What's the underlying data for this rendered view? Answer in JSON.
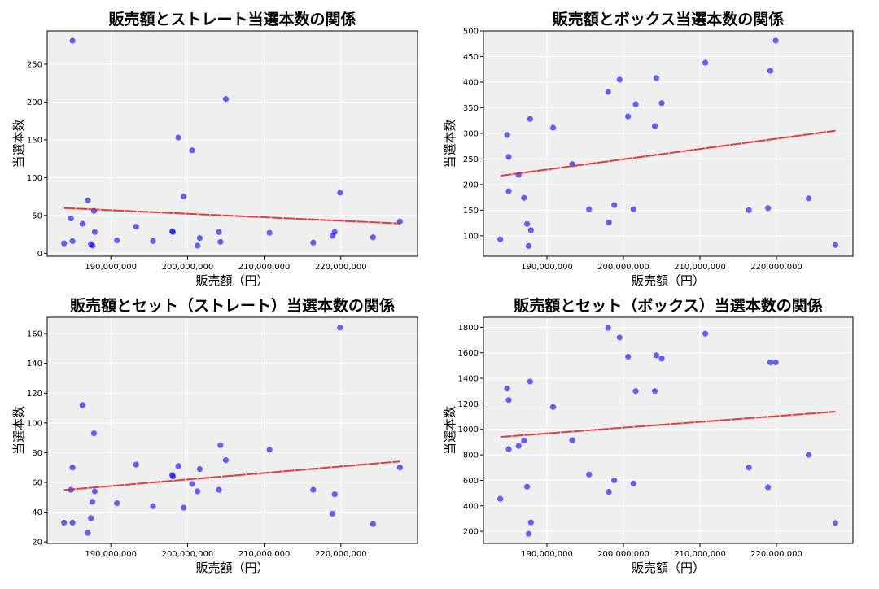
{
  "colors": {
    "point": "#0000ff",
    "trend": "#e41a1c",
    "plot_bg": "#efefef",
    "grid": "#ffffff"
  },
  "chart_data": [
    {
      "type": "scatter",
      "title": "販売額とストレート当選本数の関係",
      "xlabel": "販売額（円）",
      "ylabel": "当選本数",
      "xlim": [
        181700000,
        230000000
      ],
      "ylim": [
        -4,
        294
      ],
      "xticks": [
        190000000,
        200000000,
        210000000,
        220000000
      ],
      "xtick_labels": [
        "190,000,000",
        "200,000,000",
        "210,000,000",
        "220,000,000"
      ],
      "yticks": [
        0,
        50,
        100,
        150,
        200,
        250
      ],
      "grid": true,
      "trendline": true,
      "x": [
        183900000,
        184800000,
        185000000,
        185000000,
        186300000,
        187000000,
        187400000,
        187600000,
        187800000,
        187900000,
        190800000,
        193300000,
        195500000,
        198000000,
        198100000,
        198800000,
        199500000,
        200600000,
        201300000,
        201600000,
        204100000,
        204300000,
        205000000,
        210700000,
        216400000,
        218900000,
        219200000,
        219900000,
        224200000,
        227700000
      ],
      "y": [
        13,
        46,
        281,
        16,
        39,
        70,
        12,
        10,
        56,
        28,
        17,
        35,
        16,
        29,
        28,
        153,
        75,
        136,
        10,
        20,
        28,
        15,
        204,
        27,
        14,
        23,
        28,
        80,
        21,
        42
      ]
    },
    {
      "type": "scatter",
      "title": "販売額とボックス当選本数の関係",
      "xlabel": "販売額（円）",
      "ylabel": "当選本数",
      "xlim": [
        181700000,
        230000000
      ],
      "ylim": [
        60,
        500
      ],
      "xticks": [
        190000000,
        200000000,
        210000000,
        220000000
      ],
      "xtick_labels": [
        "190,000,000",
        "200,000,000",
        "210,000,000",
        "220,000,000"
      ],
      "yticks": [
        100,
        150,
        200,
        250,
        300,
        350,
        400,
        450,
        500
      ],
      "grid": true,
      "trendline": true,
      "x": [
        183900000,
        184800000,
        185000000,
        185000000,
        186300000,
        187000000,
        187400000,
        187600000,
        187800000,
        187900000,
        190800000,
        193300000,
        195500000,
        198000000,
        198100000,
        198800000,
        199500000,
        200600000,
        201300000,
        201600000,
        204100000,
        204300000,
        205000000,
        210700000,
        216400000,
        218900000,
        219200000,
        219900000,
        224200000,
        227700000
      ],
      "y": [
        93,
        297,
        254,
        187,
        219,
        174,
        123,
        80,
        328,
        111,
        311,
        240,
        152,
        381,
        126,
        160,
        405,
        333,
        152,
        357,
        314,
        408,
        359,
        438,
        150,
        154,
        422,
        481,
        173,
        82
      ]
    },
    {
      "type": "scatter",
      "title": "販売額とセット（ストレート）当選本数の関係",
      "xlabel": "販売額（円）",
      "ylabel": "当選本数",
      "xlim": [
        181700000,
        230000000
      ],
      "ylim": [
        19,
        171
      ],
      "xticks": [
        190000000,
        200000000,
        210000000,
        220000000
      ],
      "xtick_labels": [
        "190,000,000",
        "200,000,000",
        "210,000,000",
        "220,000,000"
      ],
      "yticks": [
        20,
        40,
        60,
        80,
        100,
        120,
        140,
        160
      ],
      "grid": true,
      "trendline": true,
      "x": [
        183900000,
        184800000,
        185000000,
        185000000,
        186300000,
        187000000,
        187400000,
        187600000,
        187800000,
        187900000,
        190800000,
        193300000,
        195500000,
        198000000,
        198100000,
        198800000,
        199500000,
        200600000,
        201300000,
        201600000,
        204100000,
        204300000,
        205000000,
        210700000,
        216400000,
        218900000,
        219200000,
        219900000,
        224200000,
        227700000
      ],
      "y": [
        33,
        55,
        70,
        33,
        112,
        26,
        36,
        47,
        93,
        54,
        46,
        72,
        44,
        65,
        64,
        71,
        43,
        59,
        54,
        69,
        55,
        85,
        75,
        82,
        55,
        39,
        52,
        164,
        32,
        70
      ]
    },
    {
      "type": "scatter",
      "title": "販売額とセット（ボックス）当選本数の関係",
      "xlabel": "販売額（円）",
      "ylabel": "当選本数",
      "xlim": [
        181700000,
        230000000
      ],
      "ylim": [
        105,
        1879
      ],
      "xticks": [
        190000000,
        200000000,
        210000000,
        220000000
      ],
      "xtick_labels": [
        "190,000,000",
        "200,000,000",
        "210,000,000",
        "220,000,000"
      ],
      "yticks": [
        200,
        400,
        600,
        800,
        1000,
        1200,
        1400,
        1600,
        1800
      ],
      "grid": true,
      "trendline": true,
      "x": [
        183900000,
        184800000,
        185000000,
        185000000,
        186300000,
        187000000,
        187400000,
        187600000,
        187800000,
        187900000,
        190800000,
        193300000,
        195500000,
        198000000,
        198100000,
        198800000,
        199500000,
        200600000,
        201300000,
        201600000,
        204100000,
        204300000,
        205000000,
        210700000,
        216400000,
        218900000,
        219200000,
        219900000,
        224200000,
        227700000
      ],
      "y": [
        455,
        1320,
        1230,
        845,
        870,
        910,
        550,
        180,
        1375,
        270,
        1175,
        915,
        645,
        1795,
        510,
        600,
        1720,
        1570,
        575,
        1300,
        1300,
        1580,
        1555,
        1750,
        700,
        545,
        1525,
        1525,
        800,
        265
      ]
    }
  ]
}
